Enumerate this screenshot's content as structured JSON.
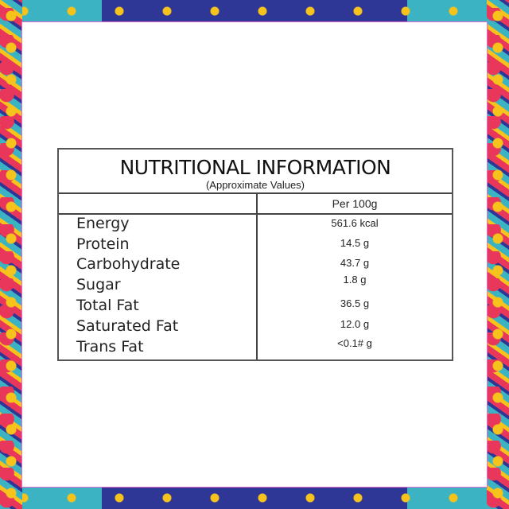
{
  "title": "NUTRITIONAL INFORMATION",
  "subtitle": "(Approximate Values)",
  "column_header": "Per 100g",
  "rows": [
    {
      "label": "Energy",
      "value": "561.6 kcal"
    },
    {
      "label": "Protein",
      "value": "14.5 g"
    },
    {
      "label": "Carbohydrate",
      "value": "43.7 g"
    },
    {
      "label": "Sugar",
      "value": "1.8 g"
    },
    {
      "label": "Total Fat",
      "value": "36.5 g"
    },
    {
      "label": "Saturated Fat",
      "value": "12.0 g"
    },
    {
      "label": "Trans Fat",
      "value": "<0.1# g"
    }
  ],
  "colors": {
    "frame_blue": "#2f3796",
    "frame_pink": "#e8375a",
    "frame_teal": "#3bb3c3",
    "frame_yellow": "#f6c21c",
    "panel_outline": "#e46ad6"
  }
}
